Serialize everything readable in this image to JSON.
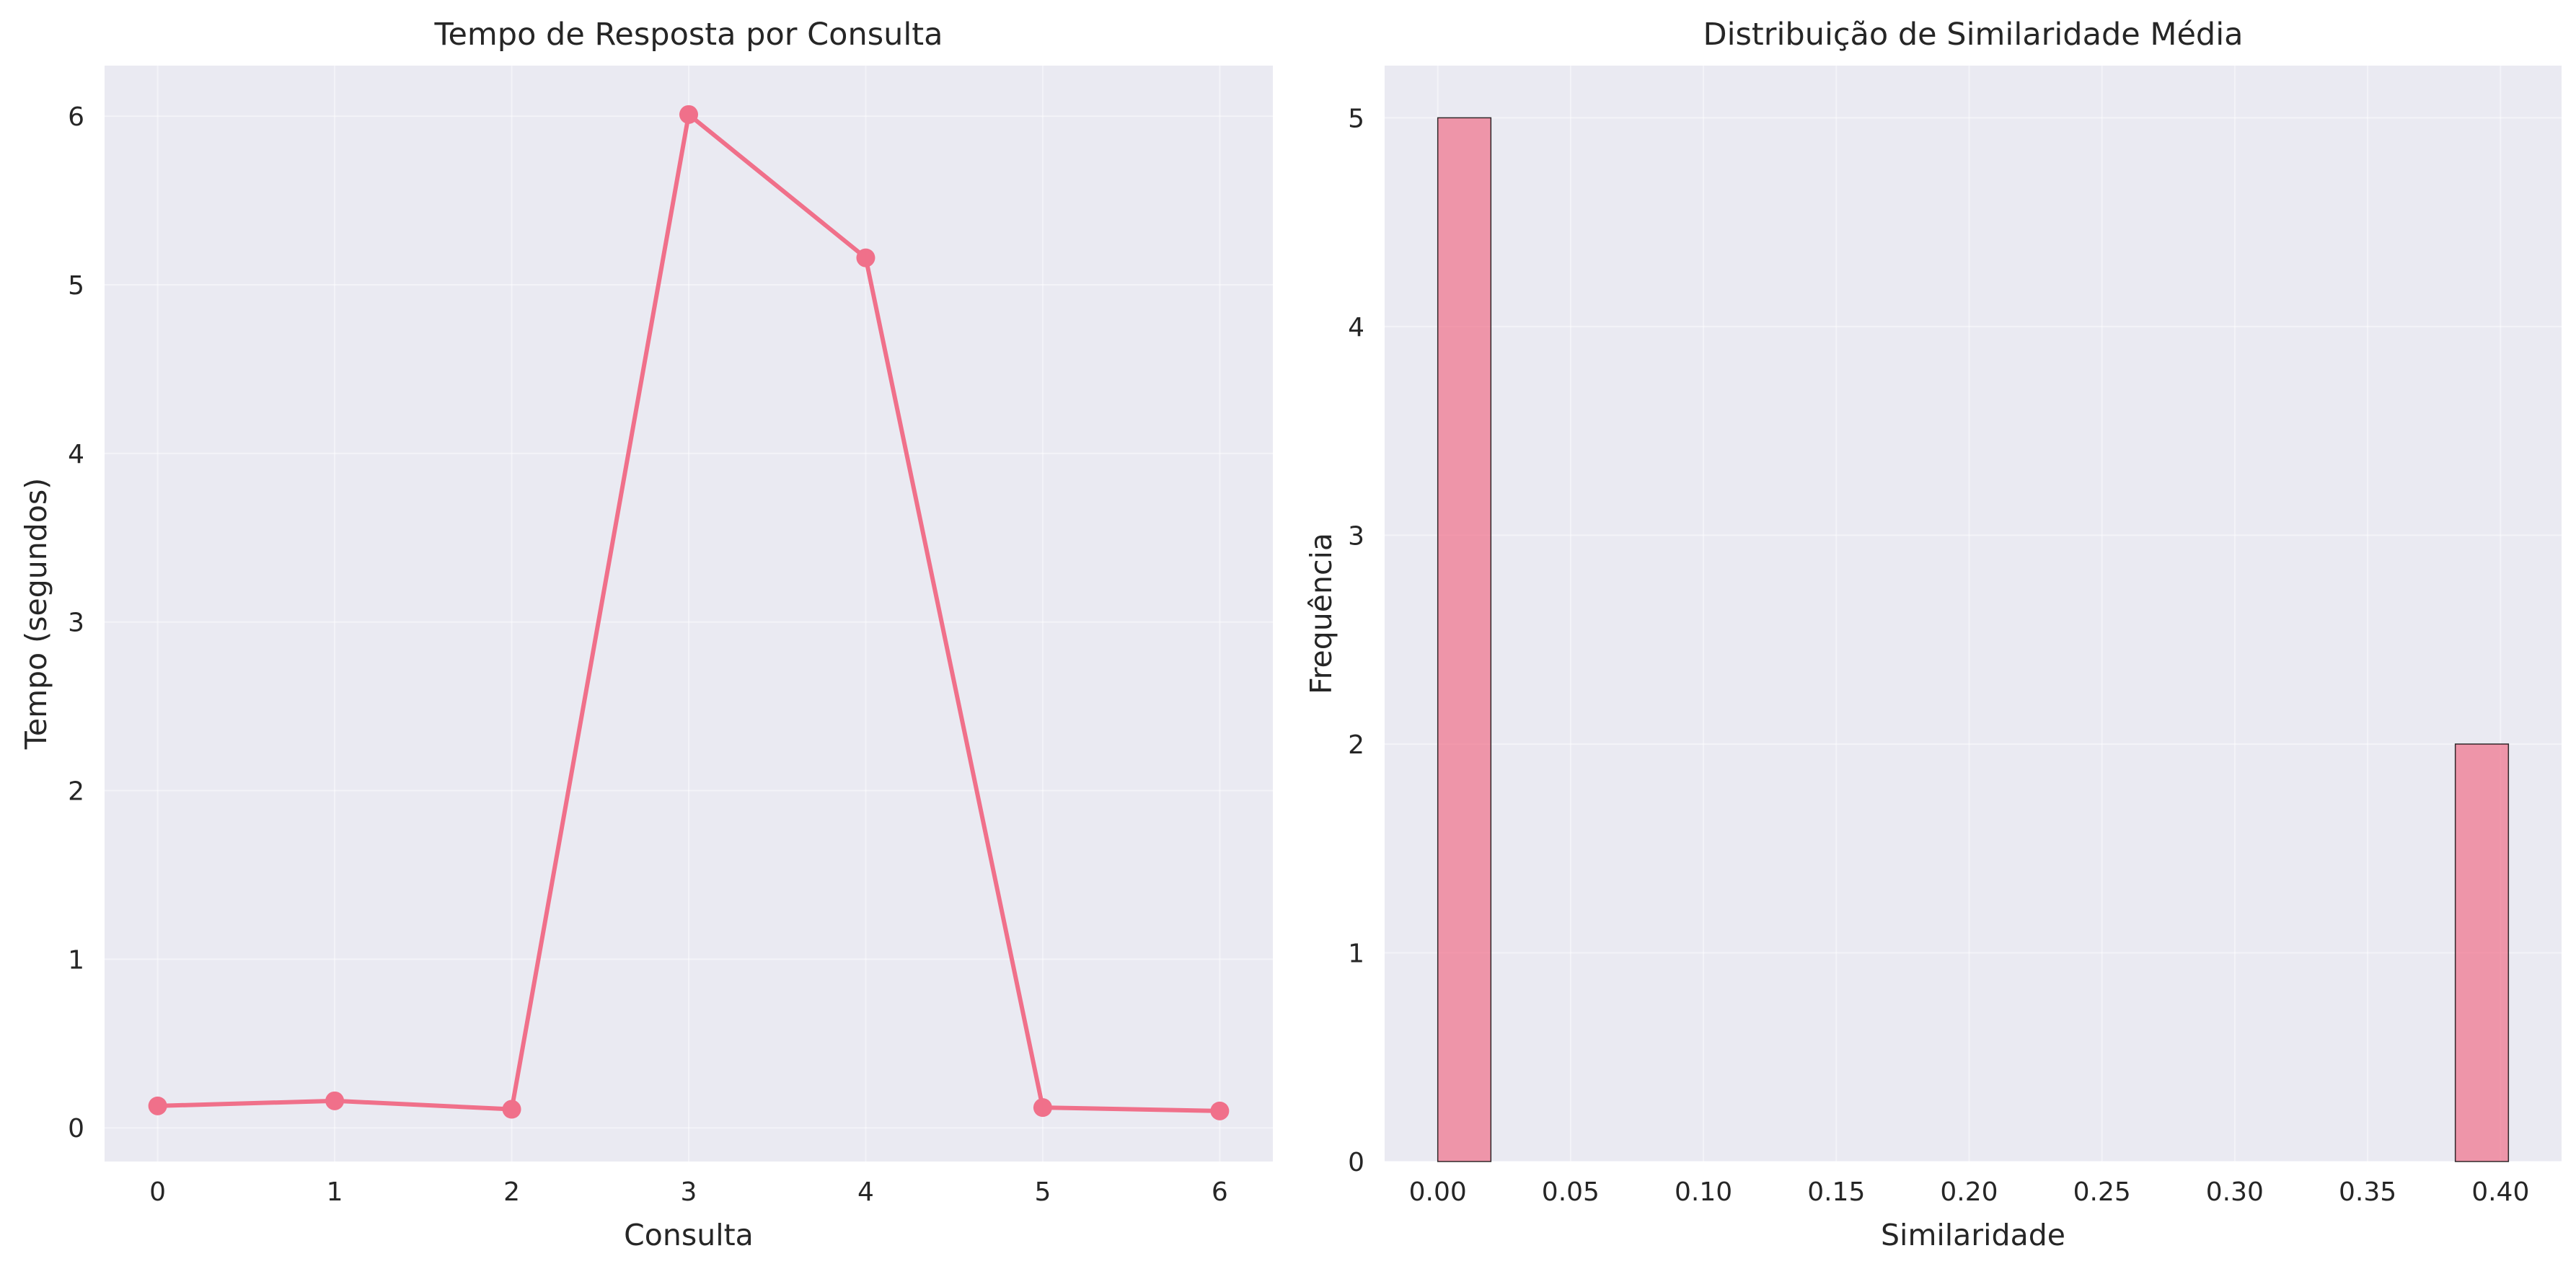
{
  "chart_data": [
    {
      "type": "line",
      "title": "Tempo de Resposta por Consulta",
      "xlabel": "Consulta",
      "ylabel": "Tempo (segundos)",
      "x": [
        0,
        1,
        2,
        3,
        4,
        5,
        6
      ],
      "series": [
        {
          "values": [
            0.13,
            0.16,
            0.11,
            6.01,
            5.16,
            0.12,
            0.1
          ]
        }
      ],
      "xticks": [
        "0",
        "1",
        "2",
        "3",
        "4",
        "5",
        "6"
      ],
      "yticks": [
        "0",
        "1",
        "2",
        "3",
        "4",
        "5",
        "6"
      ],
      "xlim": [
        -0.3,
        6.3
      ],
      "ylim": [
        -0.2,
        6.3
      ],
      "grid": true,
      "marker": "circle",
      "color": "#f0708a"
    },
    {
      "type": "bar",
      "subtype": "histogram",
      "title": "Distribuição de Similaridade Média",
      "xlabel": "Similaridade",
      "ylabel": "Frequência",
      "bins": [
        {
          "start": 0.0,
          "end": 0.02,
          "count": 5
        },
        {
          "start": 0.383,
          "end": 0.403,
          "count": 2
        }
      ],
      "xticks": [
        "0.00",
        "0.05",
        "0.10",
        "0.15",
        "0.20",
        "0.25",
        "0.30",
        "0.35",
        "0.40"
      ],
      "yticks": [
        "0",
        "1",
        "2",
        "3",
        "4",
        "5"
      ],
      "xlim": [
        -0.02,
        0.423
      ],
      "ylim": [
        0,
        5.25
      ],
      "grid": true,
      "color": "#f0708a",
      "bar_alpha": 0.7,
      "edge_color": "#000000"
    }
  ]
}
